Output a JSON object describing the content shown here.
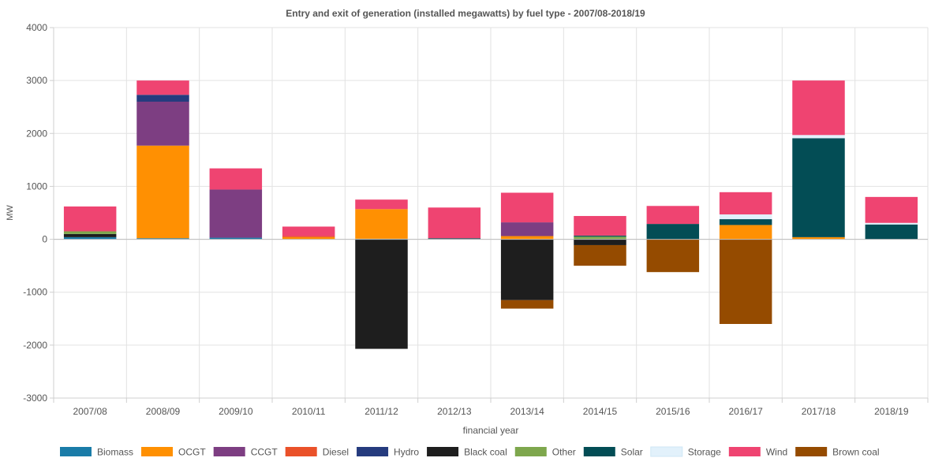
{
  "chart_data": {
    "type": "bar",
    "stacked": true,
    "title": "Entry and exit of generation (installed megawatts) by fuel type - 2007/08-2018/19",
    "xlabel": "financial year",
    "ylabel": "MW",
    "ylim": [
      -3000,
      4000
    ],
    "yticks": [
      4000,
      3000,
      2000,
      1000,
      0,
      -1000,
      -2000,
      -3000
    ],
    "grid": true,
    "legend_position": "bottom",
    "categories": [
      "2007/08",
      "2008/09",
      "2009/10",
      "2010/11",
      "2011/12",
      "2012/13",
      "2013/14",
      "2014/15",
      "2015/16",
      "2016/17",
      "2017/18",
      "2018/19"
    ],
    "series": [
      {
        "name": "Biomass",
        "color": "#1a7ca8",
        "values": [
          40,
          20,
          30,
          0,
          10,
          0,
          0,
          0,
          0,
          0,
          0,
          0
        ]
      },
      {
        "name": "OCGT",
        "color": "#ff9002",
        "values": [
          0,
          1750,
          0,
          40,
          560,
          0,
          60,
          0,
          0,
          270,
          40,
          0
        ]
      },
      {
        "name": "CCGT",
        "color": "#7d3e82",
        "values": [
          0,
          830,
          910,
          0,
          0,
          0,
          260,
          0,
          0,
          0,
          0,
          0
        ]
      },
      {
        "name": "Diesel",
        "color": "#ea5129",
        "values": [
          0,
          0,
          0,
          20,
          0,
          0,
          0,
          0,
          0,
          0,
          0,
          0
        ]
      },
      {
        "name": "Hydro",
        "color": "#253b7e",
        "values": [
          0,
          130,
          0,
          0,
          0,
          0,
          0,
          0,
          0,
          0,
          0,
          0
        ]
      },
      {
        "name": "Black coal",
        "color": "#1e1e1e",
        "values": [
          60,
          0,
          0,
          0,
          -2070,
          0,
          -1150,
          -110,
          0,
          0,
          0,
          0
        ]
      },
      {
        "name": "Other",
        "color": "#7ea74d",
        "values": [
          50,
          0,
          0,
          0,
          0,
          0,
          0,
          50,
          0,
          0,
          0,
          0
        ]
      },
      {
        "name": "Solar",
        "color": "#034d55",
        "values": [
          0,
          0,
          0,
          0,
          0,
          20,
          0,
          20,
          290,
          110,
          1870,
          280
        ]
      },
      {
        "name": "Storage",
        "color": "#e2f1fb",
        "values": [
          0,
          0,
          0,
          0,
          0,
          0,
          0,
          0,
          0,
          90,
          60,
          30
        ]
      },
      {
        "name": "Wind",
        "color": "#ef4471",
        "values": [
          470,
          270,
          400,
          180,
          180,
          580,
          560,
          370,
          340,
          420,
          1030,
          490
        ]
      },
      {
        "name": "Brown coal",
        "color": "#954b00",
        "values": [
          0,
          0,
          0,
          0,
          0,
          0,
          -160,
          -390,
          -620,
          -1600,
          0,
          0
        ]
      }
    ]
  }
}
